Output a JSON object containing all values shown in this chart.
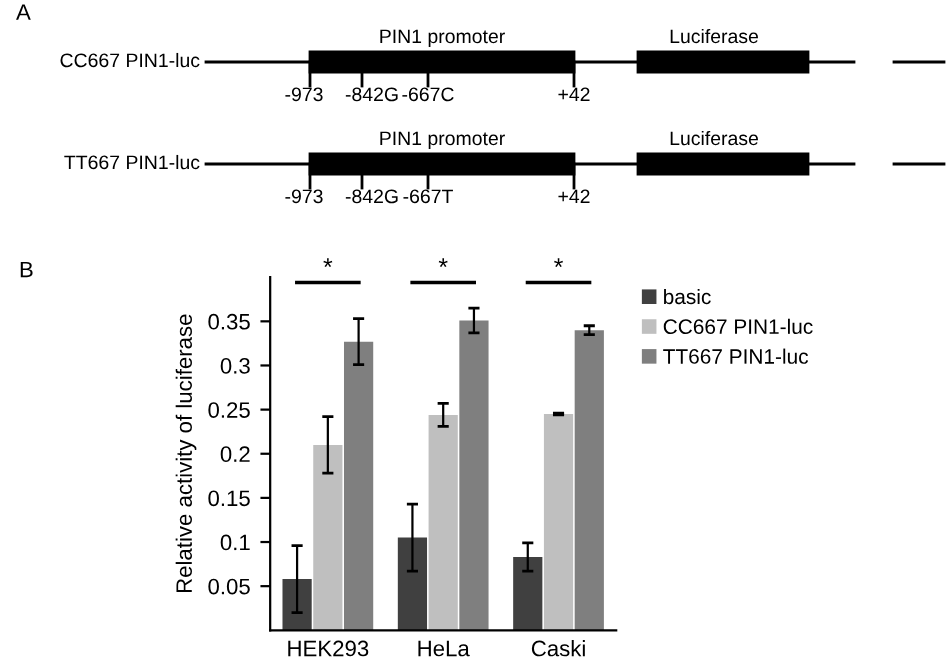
{
  "chart_data": [
    {
      "type": "other",
      "annotations": [
        "A",
        "CC667 PIN1-luc",
        "PIN1 promoter",
        "Luciferase",
        "-973",
        "-842G",
        "-667C",
        "+42",
        "TT667 PIN1-luc",
        "PIN1 promoter",
        "Luciferase",
        "-973",
        "-842G",
        "-667T",
        "+42"
      ]
    },
    {
      "type": "bar",
      "ylabel": "Relative activity of luciferase",
      "categories": [
        "HEK293",
        "HeLa",
        "Caski"
      ],
      "series": [
        {
          "name": "basic",
          "color": "#404040",
          "values": [
            0.058,
            0.105,
            0.083
          ],
          "errors": [
            0.038,
            0.038,
            0.016
          ]
        },
        {
          "name": "CC667 PIN1-luc",
          "color": "#bfbfbf",
          "values": [
            0.21,
            0.244,
            0.245
          ],
          "errors": [
            0.032,
            0.013,
            0.001
          ]
        },
        {
          "name": "TT667 PIN1-luc",
          "color": "#7f7f7f",
          "values": [
            0.327,
            0.351,
            0.34
          ],
          "errors": [
            0.026,
            0.014,
            0.005
          ]
        }
      ],
      "ylim": [
        0,
        0.4
      ],
      "yticks": [
        0.05,
        0.1,
        0.15,
        0.2,
        0.25,
        0.3,
        0.35
      ],
      "grid": false,
      "legend": "top right",
      "annotations": [
        "B",
        "*",
        "*",
        "*"
      ]
    }
  ]
}
